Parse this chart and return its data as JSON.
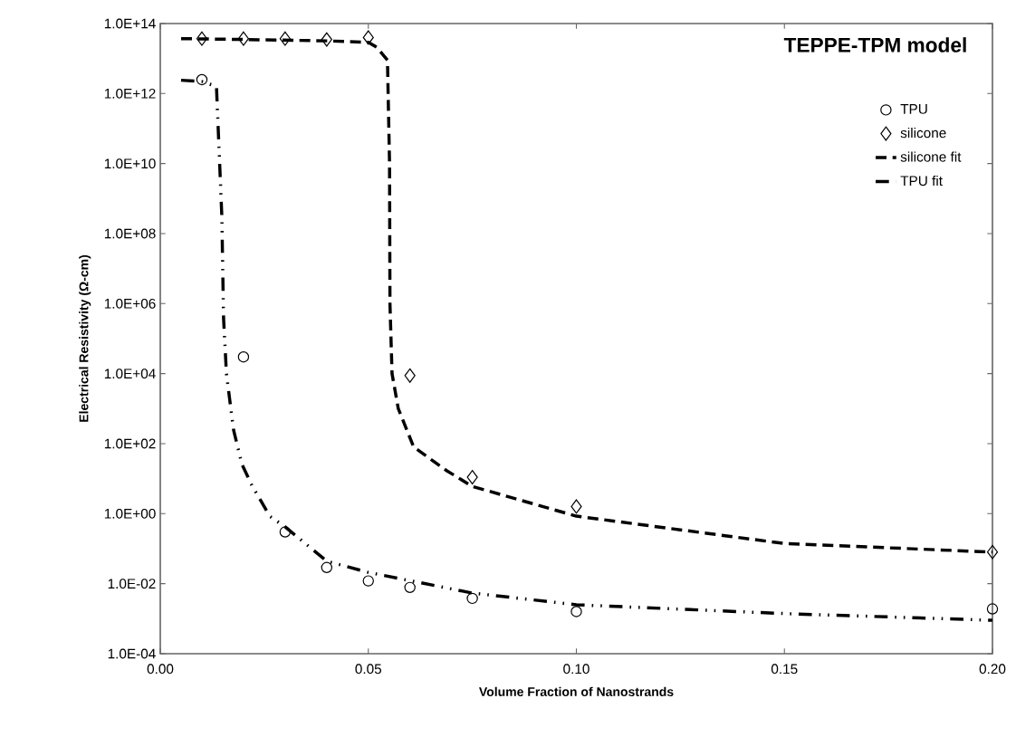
{
  "chart_data": {
    "type": "scatter",
    "xlabel": "Volume Fraction of Nanostrands",
    "ylabel": "Electrical Resistivity (Ω-cm)",
    "legend_title": "TEPPE-TPM model",
    "legend": "top right",
    "log": "y",
    "grid": false,
    "xlim": [
      0,
      0.2
    ],
    "ylim": [
      0.0001,
      100000000000000.0
    ],
    "xticks": [
      {
        "value": 0,
        "label": "0.00"
      },
      {
        "value": 0.05,
        "label": "0.05"
      },
      {
        "value": 0.1,
        "label": "0.10"
      },
      {
        "value": 0.15,
        "label": "0.15"
      },
      {
        "value": 0.2,
        "label": "0.20"
      }
    ],
    "yticks": [
      {
        "value": 0.0001,
        "label": "1.0E-04"
      },
      {
        "value": 0.01,
        "label": "1.0E-02"
      },
      {
        "value": 1,
        "label": "1.0E+00"
      },
      {
        "value": 100.0,
        "label": "1.0E+02"
      },
      {
        "value": 10000.0,
        "label": "1.0E+04"
      },
      {
        "value": 1000000.0,
        "label": "1.0E+06"
      },
      {
        "value": 100000000.0,
        "label": "1.0E+08"
      },
      {
        "value": 10000000000.0,
        "label": "1.0E+10"
      },
      {
        "value": 1000000000000.0,
        "label": "1.0E+12"
      },
      {
        "value": 100000000000000.0,
        "label": "1.0E+14"
      }
    ],
    "series": [
      {
        "name": "TPU",
        "marker": "circle",
        "color": "#000000",
        "x": [
          0.01,
          0.02,
          0.03,
          0.04,
          0.05,
          0.06,
          0.075,
          0.1,
          0.2
        ],
        "values": [
          2500000000000.0,
          30000.0,
          0.3,
          0.029,
          0.012,
          0.0078,
          0.0038,
          0.0016,
          0.0019
        ]
      },
      {
        "name": "silicone",
        "marker": "diamond",
        "color": "#000000",
        "x": [
          0.01,
          0.02,
          0.03,
          0.04,
          0.05,
          0.06,
          0.075,
          0.1,
          0.2
        ],
        "values": [
          37000000000000.0,
          37000000000000.0,
          37000000000000.0,
          35000000000000.0,
          40000000000000.0,
          8800.0,
          11,
          1.6,
          0.08
        ]
      },
      {
        "name": "silicone fit",
        "type": "line",
        "marker": "none",
        "line_style": "dashed",
        "color": "#000000",
        "x": [
          0.005,
          0.02,
          0.04,
          0.05,
          0.052,
          0.0546,
          0.0551,
          0.0552,
          0.0557,
          0.0572,
          0.0609,
          0.0688,
          0.075,
          0.1,
          0.15,
          0.2
        ],
        "values": [
          37000000000000.0,
          35000000000000.0,
          32000000000000.0,
          29000000000000.0,
          21000000000000.0,
          9000000000000.0,
          10000000000.0,
          1000000.0,
          10000.0,
          1000.0,
          80,
          17,
          6,
          0.85,
          0.14,
          0.08
        ]
      },
      {
        "name": "TPU fit",
        "type": "line",
        "marker": "none",
        "line_style": "dashdot",
        "color": "#000000",
        "x": [
          0.005,
          0.01,
          0.0135,
          0.0148,
          0.0152,
          0.0159,
          0.0176,
          0.0196,
          0.022,
          0.0263,
          0.03,
          0.04,
          0.05,
          0.075,
          0.1,
          0.15,
          0.2
        ],
        "values": [
          2400000000000.0,
          2200000000000.0,
          1600000000000.0,
          300000000.0,
          400000.0,
          10000.0,
          250,
          26,
          6.5,
          0.85,
          0.42,
          0.044,
          0.021,
          0.0054,
          0.0025,
          0.0014,
          0.0009
        ]
      }
    ]
  }
}
